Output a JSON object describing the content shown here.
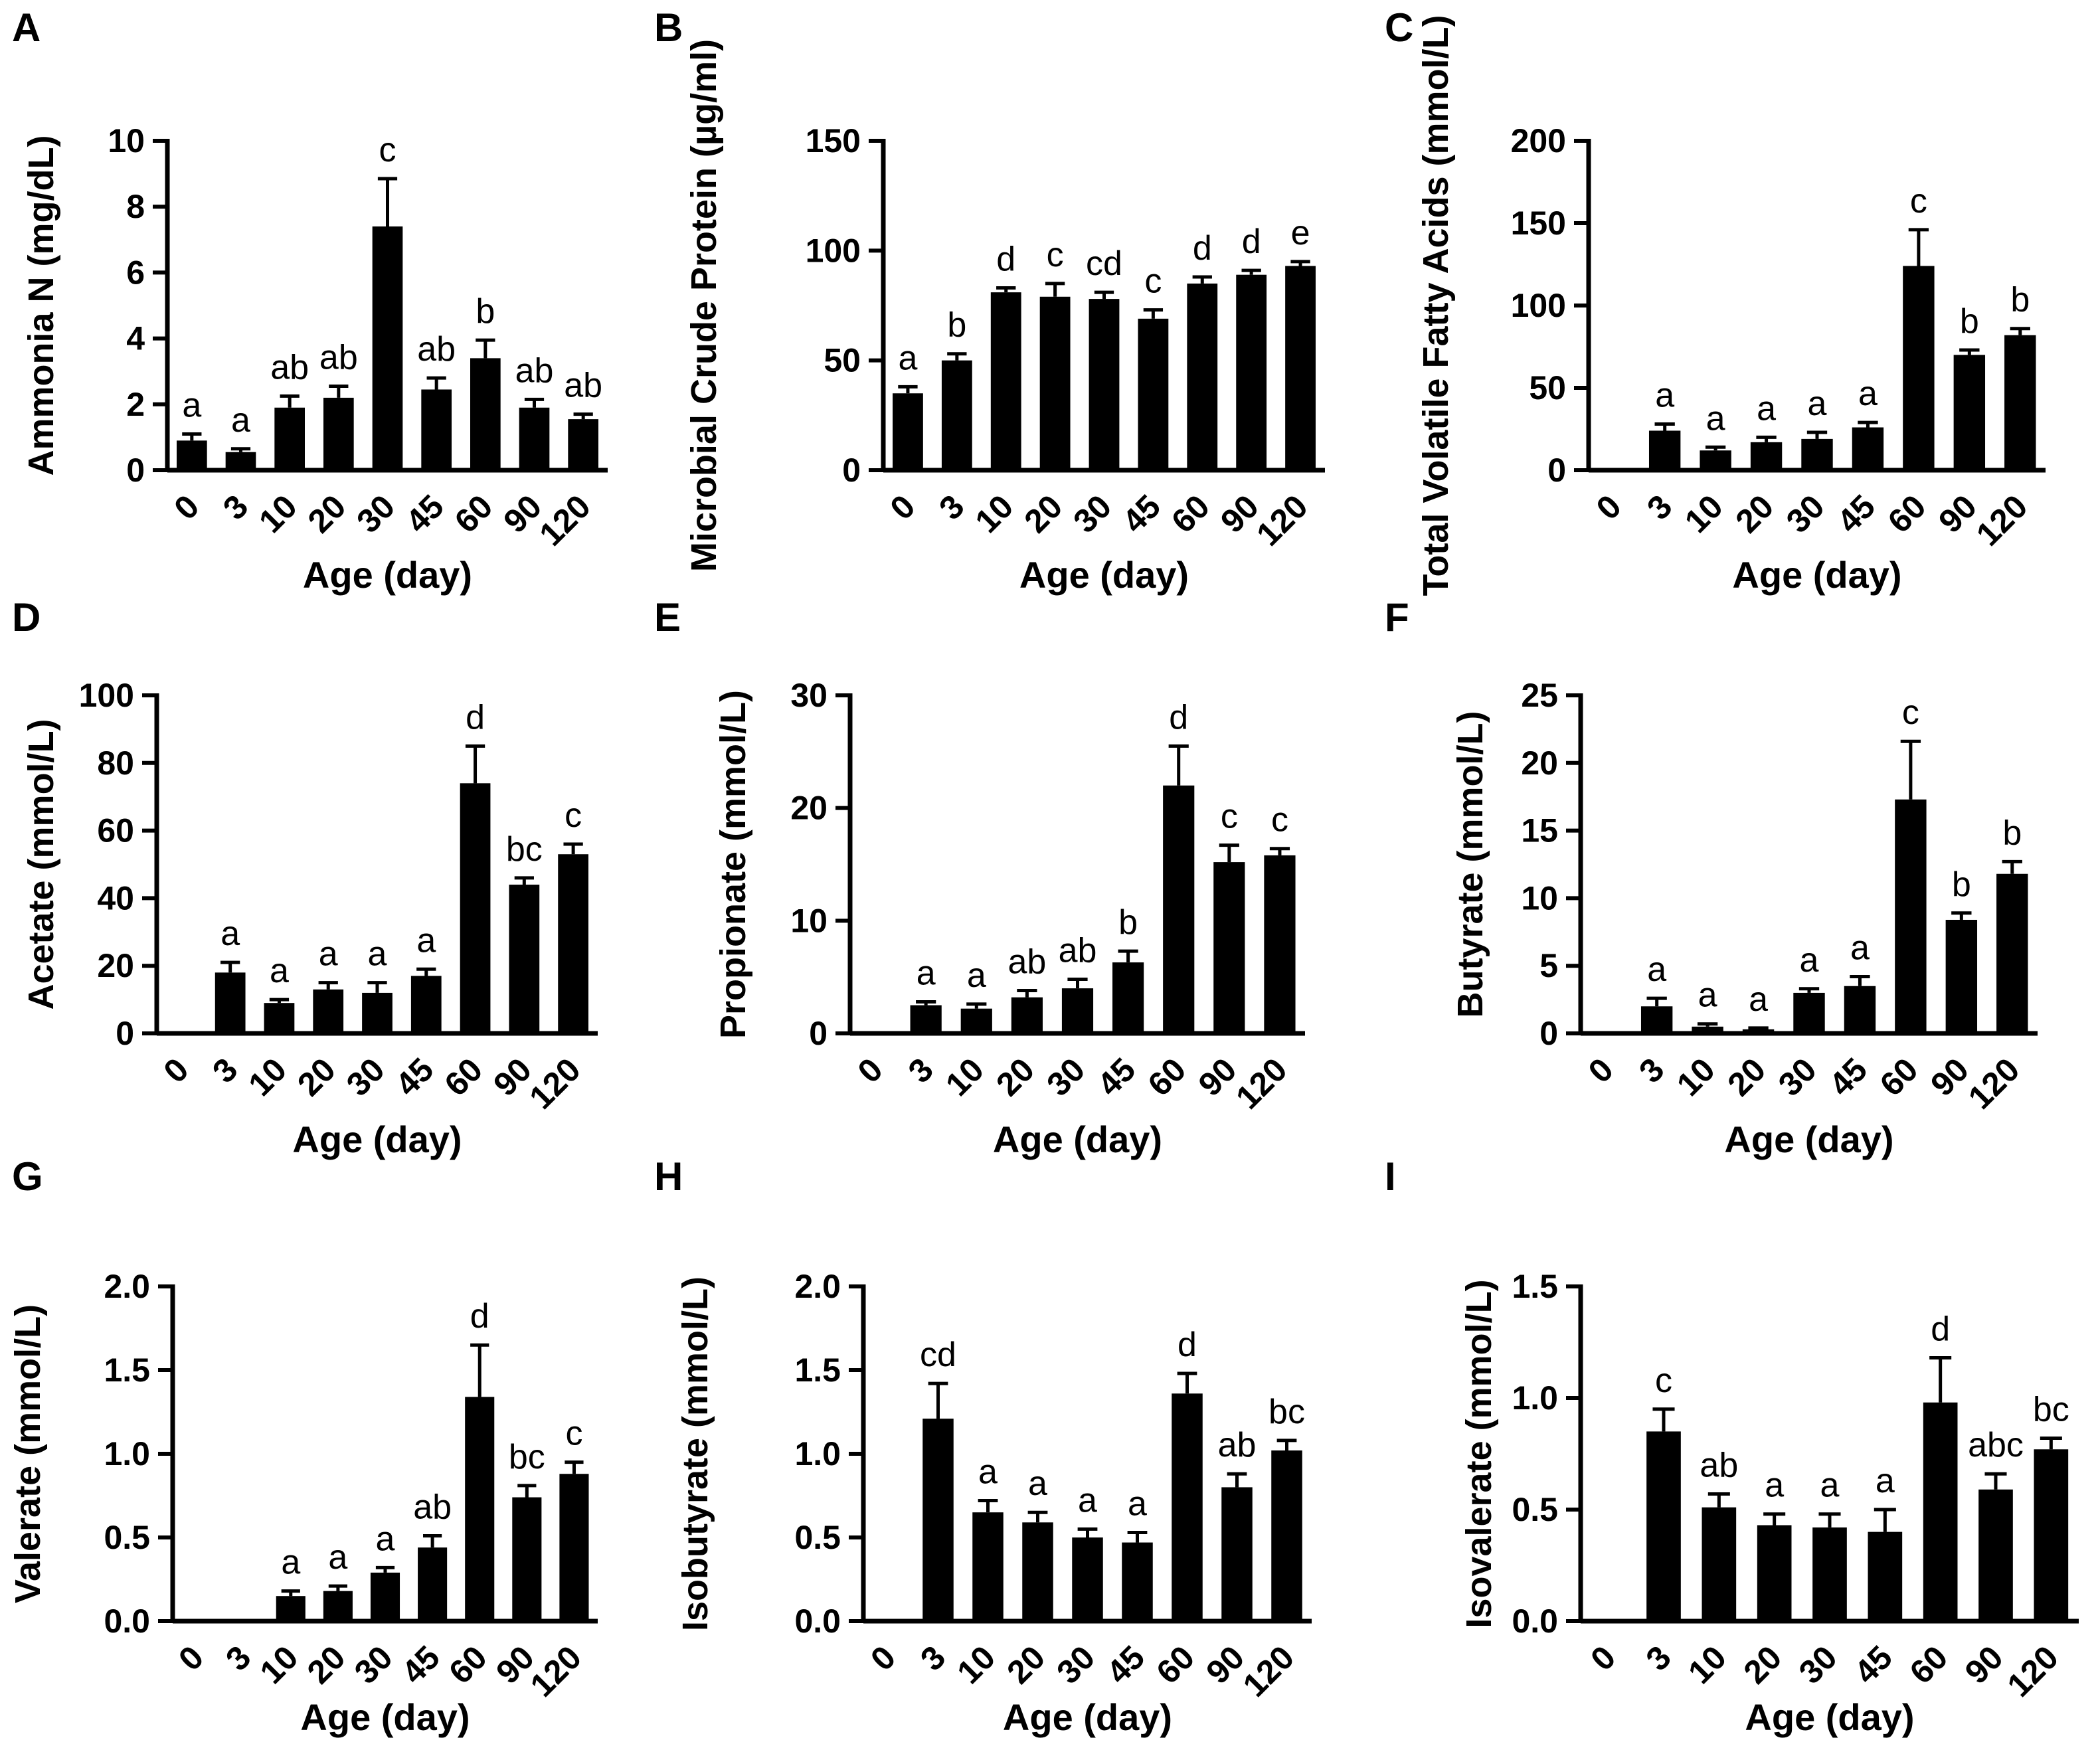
{
  "figure": {
    "xlabel": "Age (day)",
    "categories": [
      "0",
      "3",
      "10",
      "20",
      "30",
      "45",
      "60",
      "90",
      "120"
    ]
  },
  "chart_data": [
    {
      "type": "bar",
      "panel": "A",
      "title": "",
      "xlabel": "Age (day)",
      "ylabel": "Ammonia N (mg/dL)",
      "categories": [
        "0",
        "3",
        "10",
        "20",
        "30",
        "45",
        "60",
        "90",
        "120"
      ],
      "values": [
        0.9,
        0.55,
        1.9,
        2.2,
        7.4,
        2.45,
        3.4,
        1.9,
        1.55
      ],
      "errors": [
        0.2,
        0.1,
        0.35,
        0.35,
        1.45,
        0.35,
        0.55,
        0.25,
        0.15
      ],
      "letters": [
        "a",
        "a",
        "ab",
        "ab",
        "c",
        "ab",
        "b",
        "ab",
        "ab"
      ],
      "ylim": [
        0,
        10
      ],
      "yticks": [
        "0",
        "2",
        "4",
        "6",
        "8",
        "10"
      ]
    },
    {
      "type": "bar",
      "panel": "B",
      "title": "",
      "xlabel": "Age (day)",
      "ylabel": "Microbial Crude Protein (µg/ml)",
      "categories": [
        "0",
        "3",
        "10",
        "20",
        "30",
        "45",
        "60",
        "90",
        "120"
      ],
      "values": [
        35,
        50,
        81,
        79,
        78,
        69,
        85,
        89,
        93
      ],
      "errors": [
        3,
        3,
        2,
        6,
        3,
        4,
        3,
        2,
        2
      ],
      "letters": [
        "a",
        "b",
        "d",
        "c",
        "cd",
        "c",
        "d",
        "d",
        "e"
      ],
      "ylim": [
        0,
        150
      ],
      "yticks": [
        "0",
        "50",
        "100",
        "150"
      ]
    },
    {
      "type": "bar",
      "panel": "C",
      "title": "",
      "xlabel": "Age (day)",
      "ylabel": "Total Volatile Fatty Acids (mmol/L)",
      "categories": [
        "0",
        "3",
        "10",
        "20",
        "30",
        "45",
        "60",
        "90",
        "120"
      ],
      "values": [
        0,
        24,
        12,
        17,
        19,
        26,
        124,
        70,
        82
      ],
      "errors": [
        0,
        4,
        2,
        3,
        4,
        3,
        22,
        3,
        4
      ],
      "letters": [
        "",
        "a",
        "a",
        "a",
        "a",
        "a",
        "c",
        "b",
        "b"
      ],
      "ylim": [
        0,
        200
      ],
      "yticks": [
        "0",
        "50",
        "100",
        "150",
        "200"
      ]
    },
    {
      "type": "bar",
      "panel": "D",
      "title": "",
      "xlabel": "Age (day)",
      "ylabel": "Acetate (mmol/L)",
      "categories": [
        "0",
        "3",
        "10",
        "20",
        "30",
        "45",
        "60",
        "90",
        "120"
      ],
      "values": [
        0,
        18,
        9,
        13,
        12,
        17,
        74,
        44,
        53
      ],
      "errors": [
        0,
        3,
        1,
        2,
        3,
        2,
        11,
        2,
        3
      ],
      "letters": [
        "",
        "a",
        "a",
        "a",
        "a",
        "a",
        "d",
        "bc",
        "c"
      ],
      "ylim": [
        0,
        100
      ],
      "yticks": [
        "0",
        "20",
        "40",
        "60",
        "80",
        "100"
      ]
    },
    {
      "type": "bar",
      "panel": "E",
      "title": "",
      "xlabel": "Age (day)",
      "ylabel": "Propionate (mmol/L)",
      "categories": [
        "0",
        "3",
        "10",
        "20",
        "30",
        "45",
        "60",
        "90",
        "120"
      ],
      "values": [
        0,
        2.5,
        2.2,
        3.2,
        4.0,
        6.3,
        22,
        15.2,
        15.8
      ],
      "errors": [
        0,
        0.3,
        0.4,
        0.6,
        0.8,
        1.0,
        3.5,
        1.5,
        0.6
      ],
      "letters": [
        "",
        "a",
        "a",
        "ab",
        "ab",
        "b",
        "d",
        "c",
        "c"
      ],
      "ylim": [
        0,
        30
      ],
      "yticks": [
        "0",
        "10",
        "20",
        "30"
      ]
    },
    {
      "type": "bar",
      "panel": "F",
      "title": "",
      "xlabel": "Age (day)",
      "ylabel": "Butyrate (mmol/L)",
      "categories": [
        "0",
        "3",
        "10",
        "20",
        "30",
        "45",
        "60",
        "90",
        "120"
      ],
      "values": [
        0,
        2.0,
        0.5,
        0.3,
        3.0,
        3.5,
        17.3,
        8.4,
        11.8
      ],
      "errors": [
        0,
        0.6,
        0.2,
        0.1,
        0.3,
        0.7,
        4.3,
        0.5,
        0.9
      ],
      "letters": [
        "",
        "a",
        "a",
        "a",
        "a",
        "a",
        "c",
        "b",
        "b"
      ],
      "ylim": [
        0,
        25
      ],
      "yticks": [
        "0",
        "5",
        "10",
        "15",
        "20",
        "25"
      ]
    },
    {
      "type": "bar",
      "panel": "G",
      "title": "",
      "xlabel": "Age (day)",
      "ylabel": "Valerate (mmol/L)",
      "categories": [
        "0",
        "3",
        "10",
        "20",
        "30",
        "45",
        "60",
        "90",
        "120"
      ],
      "values": [
        0.01,
        0.01,
        0.15,
        0.18,
        0.29,
        0.44,
        1.34,
        0.74,
        0.88
      ],
      "errors": [
        0,
        0,
        0.03,
        0.03,
        0.03,
        0.07,
        0.31,
        0.07,
        0.07
      ],
      "letters": [
        "",
        "",
        "a",
        "a",
        "a",
        "ab",
        "d",
        "bc",
        "c"
      ],
      "ylim": [
        0,
        2.0
      ],
      "yticks": [
        "0.0",
        "0.5",
        "1.0",
        "1.5",
        "2.0"
      ]
    },
    {
      "type": "bar",
      "panel": "H",
      "title": "",
      "xlabel": "Age (day)",
      "ylabel": "Isobutyrate (mmol/L)",
      "categories": [
        "0",
        "3",
        "10",
        "20",
        "30",
        "45",
        "60",
        "90",
        "120"
      ],
      "values": [
        0,
        1.21,
        0.65,
        0.59,
        0.5,
        0.47,
        1.36,
        0.8,
        1.02
      ],
      "errors": [
        0,
        0.21,
        0.07,
        0.06,
        0.05,
        0.06,
        0.12,
        0.08,
        0.06
      ],
      "letters": [
        "",
        "cd",
        "a",
        "a",
        "a",
        "a",
        "d",
        "ab",
        "bc"
      ],
      "ylim": [
        0,
        2.0
      ],
      "yticks": [
        "0.0",
        "0.5",
        "1.0",
        "1.5",
        "2.0"
      ]
    },
    {
      "type": "bar",
      "panel": "I",
      "title": "",
      "xlabel": "Age (day)",
      "ylabel": "Isovalerate (mmol/L)",
      "categories": [
        "0",
        "3",
        "10",
        "20",
        "30",
        "45",
        "60",
        "90",
        "120"
      ],
      "values": [
        0,
        0.85,
        0.51,
        0.43,
        0.42,
        0.4,
        0.98,
        0.59,
        0.77
      ],
      "errors": [
        0,
        0.1,
        0.06,
        0.05,
        0.06,
        0.1,
        0.2,
        0.07,
        0.05
      ],
      "letters": [
        "",
        "c",
        "ab",
        "a",
        "a",
        "a",
        "d",
        "abc",
        "bc"
      ],
      "ylim": [
        0,
        1.5
      ],
      "yticks": [
        "0.0",
        "0.5",
        "1.0",
        "1.5"
      ]
    }
  ]
}
